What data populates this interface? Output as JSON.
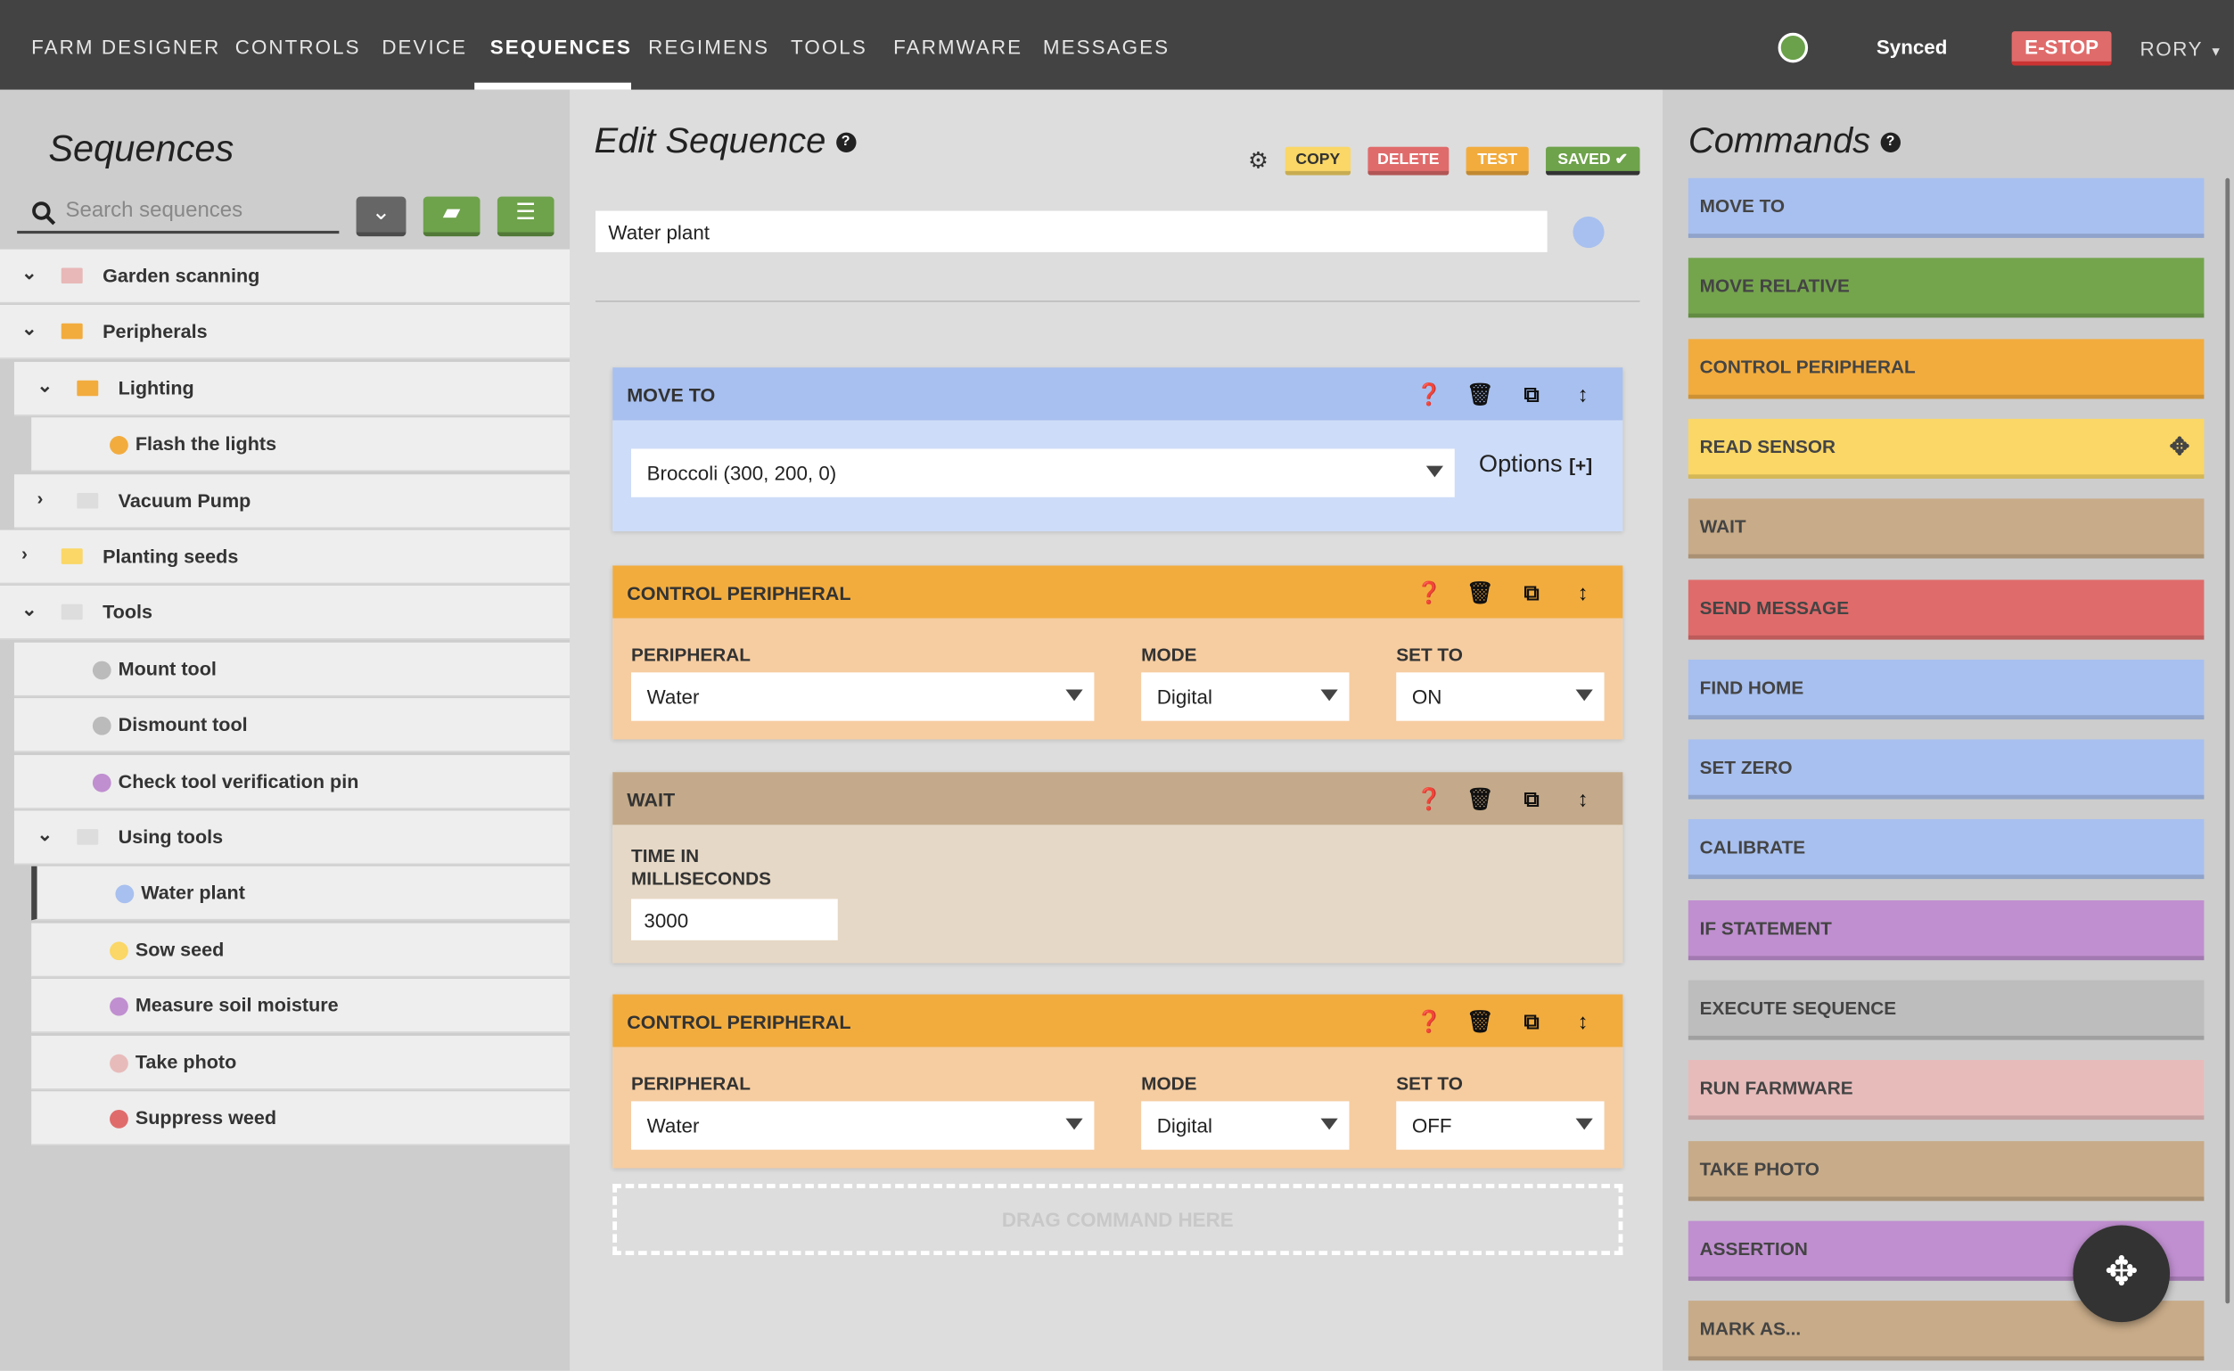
{
  "nav": {
    "tabs": [
      "FARM DESIGNER",
      "CONTROLS",
      "DEVICE",
      "SEQUENCES",
      "REGIMENS",
      "TOOLS",
      "FARMWARE",
      "MESSAGES"
    ],
    "active": "SEQUENCES",
    "sync_status": "Synced",
    "estop": "E-STOP",
    "user": "RORY",
    "sync_color": "#6ba14a"
  },
  "sequences": {
    "title": "Sequences",
    "search_placeholder": "Search sequences",
    "tree": [
      {
        "label": "Garden scanning",
        "type": "folder",
        "level": 0,
        "expanded": true,
        "color": "#e8b7b7"
      },
      {
        "label": "Peripherals",
        "type": "folder",
        "level": 0,
        "expanded": true,
        "color": "#f2ac3e"
      },
      {
        "label": "Lighting",
        "type": "folder",
        "level": 1,
        "expanded": true,
        "color": "#f2ac3e"
      },
      {
        "label": "Flash the lights",
        "type": "seq",
        "level": 2,
        "color": "#f2ac3e"
      },
      {
        "label": "Vacuum Pump",
        "type": "folder",
        "level": 1,
        "expanded": false,
        "color": "#ddd"
      },
      {
        "label": "Planting seeds",
        "type": "folder",
        "level": 0,
        "expanded": false,
        "color": "#fad766"
      },
      {
        "label": "Tools",
        "type": "folder",
        "level": 0,
        "expanded": true,
        "color": "#ddd"
      },
      {
        "label": "Mount tool",
        "type": "seq",
        "level": 1,
        "color": "#bbb"
      },
      {
        "label": "Dismount tool",
        "type": "seq",
        "level": 1,
        "color": "#bbb"
      },
      {
        "label": "Check tool verification pin",
        "type": "seq",
        "level": 1,
        "color": "#c08fd0"
      },
      {
        "label": "Using tools",
        "type": "folder",
        "level": 1,
        "expanded": true,
        "color": "#ddd"
      },
      {
        "label": "Water plant",
        "type": "seq",
        "level": 2,
        "color": "#a8c0ef",
        "active": true
      },
      {
        "label": "Sow seed",
        "type": "seq",
        "level": 2,
        "color": "#fad766"
      },
      {
        "label": "Measure soil moisture",
        "type": "seq",
        "level": 2,
        "color": "#c08fd0"
      },
      {
        "label": "Take photo",
        "type": "seq",
        "level": 2,
        "color": "#e8bbbb"
      },
      {
        "label": "Suppress weed",
        "type": "seq",
        "level": 2,
        "color": "#e06b6b"
      }
    ]
  },
  "editor": {
    "title": "Edit Sequence",
    "buttons": {
      "copy": "COPY",
      "delete": "DELETE",
      "test": "TEST",
      "saved": "SAVED ✔"
    },
    "name": "Water plant",
    "color": "#a8c0ef",
    "steps": [
      {
        "kind": "move_to",
        "title": "MOVE TO",
        "location": "Broccoli (300, 200, 0)",
        "options": "Options",
        "options_icon": "[+]"
      },
      {
        "kind": "control_peripheral",
        "title": "CONTROL PERIPHERAL",
        "labels": [
          "PERIPHERAL",
          "MODE",
          "SET TO"
        ],
        "peripheral": "Water",
        "mode": "Digital",
        "set_to": "ON"
      },
      {
        "kind": "wait",
        "title": "WAIT",
        "label": "TIME IN MILLISECONDS",
        "value": "3000"
      },
      {
        "kind": "control_peripheral",
        "title": "CONTROL PERIPHERAL",
        "labels": [
          "PERIPHERAL",
          "MODE",
          "SET TO"
        ],
        "peripheral": "Water",
        "mode": "Digital",
        "set_to": "OFF"
      }
    ],
    "drop_zone": "DRAG COMMAND HERE"
  },
  "commands": {
    "title": "Commands",
    "items": [
      {
        "label": "MOVE TO",
        "color": "#a8c0ef"
      },
      {
        "label": "MOVE RELATIVE",
        "color": "#74a54d"
      },
      {
        "label": "CONTROL PERIPHERAL",
        "color": "#f2ac3e"
      },
      {
        "label": "READ SENSOR",
        "color": "#fad766",
        "drag_icon": true
      },
      {
        "label": "WAIT",
        "color": "#c8ab88"
      },
      {
        "label": "SEND MESSAGE",
        "color": "#e06b6b"
      },
      {
        "label": "FIND HOME",
        "color": "#a8c0ef"
      },
      {
        "label": "SET ZERO",
        "color": "#a8c0ef"
      },
      {
        "label": "CALIBRATE",
        "color": "#a8c0ef"
      },
      {
        "label": "IF STATEMENT",
        "color": "#c08fd0"
      },
      {
        "label": "EXECUTE SEQUENCE",
        "color": "#bdbdbd"
      },
      {
        "label": "RUN FARMWARE",
        "color": "#e8bbbb"
      },
      {
        "label": "TAKE PHOTO",
        "color": "#c8ab88"
      },
      {
        "label": "ASSERTION",
        "color": "#c08fd0"
      },
      {
        "label": "MARK AS...",
        "color": "#c8ab88"
      }
    ]
  }
}
